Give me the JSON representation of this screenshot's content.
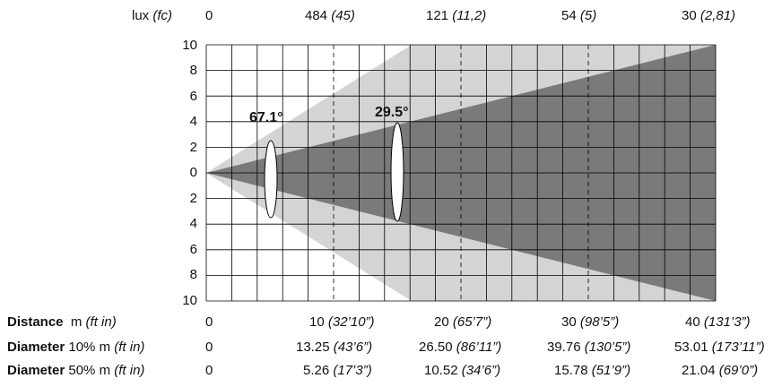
{
  "lux_row": {
    "label": "lux",
    "label_unit": "(fc)",
    "values": [
      {
        "main": "0",
        "sub": ""
      },
      {
        "main": "484",
        "sub": "(45)"
      },
      {
        "main": "121",
        "sub": "(11,2)"
      },
      {
        "main": "54",
        "sub": "(5)"
      },
      {
        "main": "30",
        "sub": "(2,81)"
      }
    ]
  },
  "y_ticks_top": [
    "10",
    "8",
    "6",
    "4",
    "2",
    "0"
  ],
  "y_ticks_bottom": [
    "2",
    "4",
    "6",
    "8",
    "10"
  ],
  "angles": {
    "wide": "67.1°",
    "narrow": "29.5°"
  },
  "rows": [
    {
      "label_bold": "Distance",
      "label_rest": "m",
      "label_unit": "(ft in)",
      "values": [
        {
          "main": "0",
          "sub": ""
        },
        {
          "main": "10",
          "sub": "(32’10”)"
        },
        {
          "main": "20",
          "sub": "(65’7”)"
        },
        {
          "main": "30",
          "sub": "(98’5”)"
        },
        {
          "main": "40",
          "sub": "(131’3”)"
        }
      ]
    },
    {
      "label_bold": "Diameter",
      "label_rest": "10% m",
      "label_unit": "(ft in)",
      "values": [
        {
          "main": "0",
          "sub": ""
        },
        {
          "main": "13.25",
          "sub": "(43’6”)"
        },
        {
          "main": "26.50",
          "sub": "(86’11”)"
        },
        {
          "main": "39.76",
          "sub": "(130’5”)"
        },
        {
          "main": "53.01",
          "sub": "(173’11”)"
        }
      ]
    },
    {
      "label_bold": "Diameter",
      "label_rest": "50% m",
      "label_unit": "(ft in)",
      "values": [
        {
          "main": "0",
          "sub": ""
        },
        {
          "main": "5.26",
          "sub": "(17’3”)"
        },
        {
          "main": "10.52",
          "sub": "(34’6”)"
        },
        {
          "main": "15.78",
          "sub": "(51’9”)"
        },
        {
          "main": "21.04",
          "sub": "(69’0”)"
        }
      ]
    }
  ],
  "colors": {
    "wide_beam": "#d4d4d4",
    "narrow_beam": "#7a7a7a",
    "grid": "#000000"
  }
}
